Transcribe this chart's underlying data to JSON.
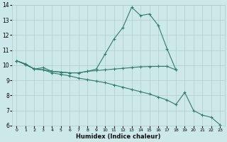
{
  "xlabel": "Humidex (Indice chaleur)",
  "x_values": [
    0,
    1,
    2,
    3,
    4,
    5,
    6,
    7,
    8,
    9,
    10,
    11,
    12,
    13,
    14,
    15,
    16,
    17,
    18,
    19,
    20,
    21,
    22,
    23
  ],
  "line1": [
    10.3,
    10.1,
    9.75,
    9.85,
    9.6,
    9.55,
    9.5,
    9.5,
    9.6,
    9.75,
    10.75,
    11.75,
    12.5,
    13.85,
    13.3,
    13.4,
    12.65,
    11.1,
    9.7,
    null,
    null,
    null,
    null,
    null
  ],
  "line2": [
    10.3,
    10.05,
    9.75,
    9.7,
    9.6,
    9.55,
    9.5,
    9.5,
    9.6,
    9.65,
    9.7,
    9.75,
    9.8,
    9.85,
    9.9,
    9.92,
    9.93,
    9.93,
    9.7,
    null,
    null,
    null,
    null,
    null
  ],
  "line3": [
    10.3,
    10.05,
    9.75,
    9.7,
    9.5,
    9.4,
    9.3,
    9.15,
    9.05,
    8.95,
    8.85,
    8.7,
    8.55,
    8.4,
    8.25,
    8.1,
    7.9,
    7.7,
    7.4,
    8.2,
    7.0,
    6.7,
    6.55,
    6.05
  ],
  "line_color": "#2e7d6e",
  "marker": "+",
  "bg_color": "#cce8e8",
  "grid_color": "#b0cccc",
  "ylim": [
    6,
    14
  ],
  "yticks": [
    6,
    7,
    8,
    9,
    10,
    11,
    12,
    13,
    14
  ],
  "xticks": [
    0,
    1,
    2,
    3,
    4,
    5,
    6,
    7,
    8,
    9,
    10,
    11,
    12,
    13,
    14,
    15,
    16,
    17,
    18,
    19,
    20,
    21,
    22,
    23
  ]
}
